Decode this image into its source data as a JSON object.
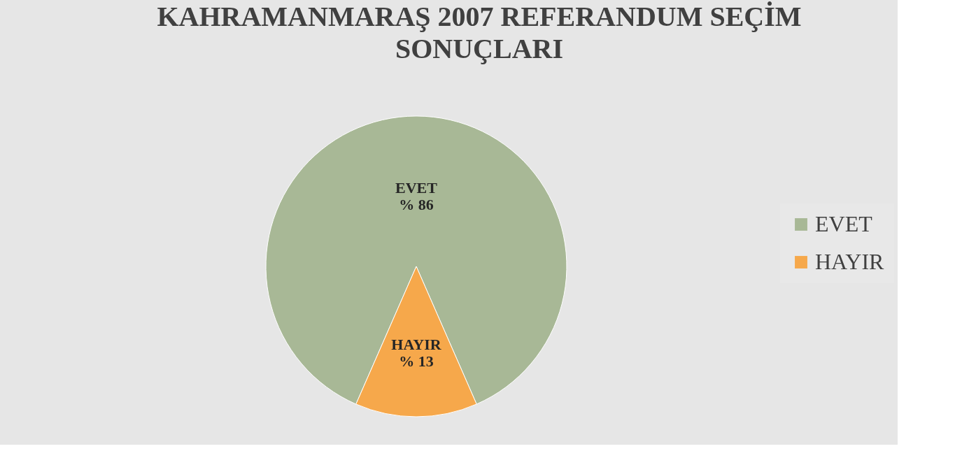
{
  "chart_data": {
    "type": "pie",
    "title": "KAHRAMANMARAŞ 2007 REFERANDUM SEÇİM SONUÇLARI",
    "categories": [
      "EVET",
      "HAYIR"
    ],
    "values": [
      86,
      13
    ],
    "colors": [
      "#a8b896",
      "#f6a84b"
    ],
    "value_labels": [
      "% 86",
      "% 13"
    ],
    "legend": "right"
  }
}
